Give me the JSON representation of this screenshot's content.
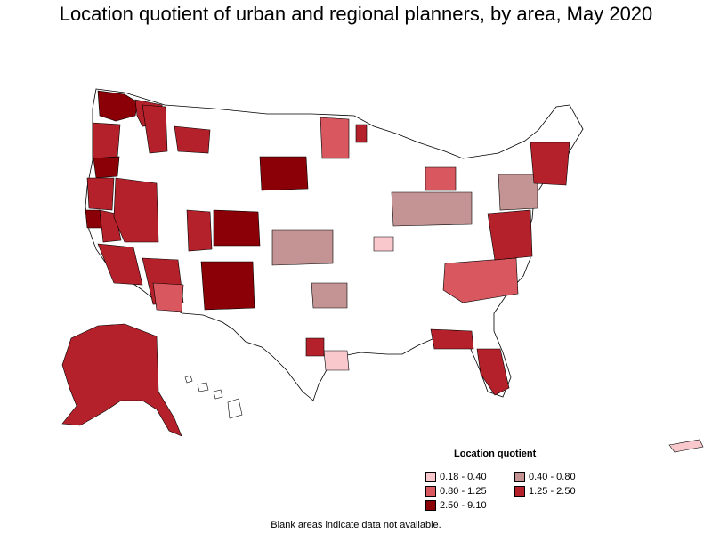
{
  "title": "Location quotient of urban and regional planners, by area, May 2020",
  "legend": {
    "title": "Location quotient",
    "items": [
      {
        "label": "0.18 - 0.40",
        "color": "#f9c8cd"
      },
      {
        "label": "0.40 - 0.80",
        "color": "#c49494"
      },
      {
        "label": "0.80 - 1.25",
        "color": "#d9575f"
      },
      {
        "label": "1.25 - 2.50",
        "color": "#b5212a"
      },
      {
        "label": "2.50 - 9.10",
        "color": "#8b0007"
      }
    ]
  },
  "footnote": "Blank areas indicate data not available.",
  "colors": {
    "no_data": "#ffffff",
    "boundary": "#000000"
  }
}
